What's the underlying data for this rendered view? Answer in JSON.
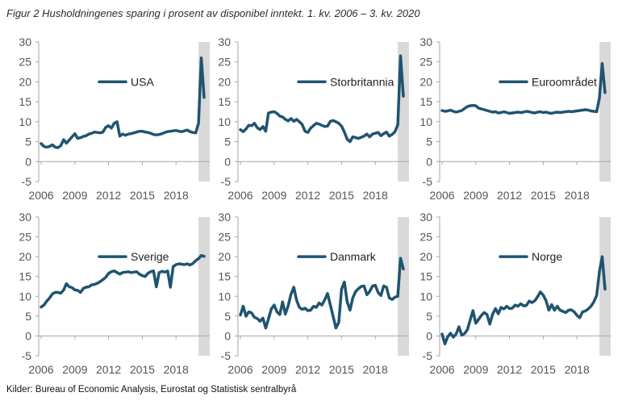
{
  "figure": {
    "title": "Figur 2 Husholdningenes sparing i prosent av disponibel inntekt. 1. kv. 2006 – 3. kv. 2020",
    "source": "Kilder: Bureau of Economic Analysis, Eurostat og Statistisk sentralbyrå"
  },
  "colors": {
    "line": "#1f5470",
    "shade": "#d9d9d9",
    "axis": "#a6a6a6"
  },
  "chart_data": [
    {
      "type": "line",
      "title": "USA",
      "xlabel": "",
      "ylabel": "",
      "x_start": 2006,
      "periods_per_year": 4,
      "xticks": [
        2006,
        2009,
        2012,
        2015,
        2018
      ],
      "ylim": [
        -5,
        30
      ],
      "yticks": [
        -5,
        0,
        5,
        10,
        15,
        20,
        25,
        30
      ],
      "shaded_from": 2020,
      "series": [
        {
          "name": "USA",
          "values": [
            4.5,
            3.8,
            3.6,
            3.8,
            4.2,
            3.6,
            3.5,
            4.0,
            5.5,
            4.6,
            5.4,
            6.2,
            7.0,
            5.8,
            6.0,
            6.3,
            6.5,
            6.9,
            7.1,
            7.4,
            7.3,
            7.2,
            7.4,
            8.6,
            9.0,
            8.4,
            9.6,
            10.0,
            6.4,
            6.9,
            6.6,
            6.9,
            7.0,
            7.2,
            7.4,
            7.6,
            7.6,
            7.4,
            7.3,
            7.1,
            6.8,
            6.7,
            6.8,
            7.0,
            7.3,
            7.5,
            7.6,
            7.7,
            7.8,
            7.6,
            7.5,
            7.7,
            7.9,
            7.5,
            7.3,
            7.2,
            9.6,
            26.0,
            16.1
          ]
        }
      ],
      "legend": {
        "label": "USA",
        "position": "top-center"
      }
    },
    {
      "type": "line",
      "title": "Storbritannia",
      "xlabel": "",
      "ylabel": "",
      "x_start": 2006,
      "periods_per_year": 4,
      "xticks": [
        2006,
        2009,
        2012,
        2015,
        2018
      ],
      "ylim": [
        -5,
        30
      ],
      "yticks": [
        -5,
        0,
        5,
        10,
        15,
        20,
        25,
        30
      ],
      "shaded_from": 2020,
      "series": [
        {
          "name": "Storbritannia",
          "values": [
            8.0,
            7.5,
            8.2,
            9.1,
            9.0,
            9.6,
            8.5,
            8.0,
            8.8,
            7.6,
            12.2,
            12.4,
            12.5,
            12.1,
            11.4,
            11.2,
            10.6,
            10.2,
            10.8,
            10.1,
            10.6,
            10.0,
            9.3,
            7.6,
            7.3,
            8.4,
            9.0,
            9.6,
            9.4,
            9.1,
            8.8,
            8.9,
            10.1,
            10.3,
            10.0,
            9.6,
            8.9,
            7.4,
            5.6,
            5.0,
            6.2,
            6.0,
            5.8,
            6.1,
            6.4,
            6.9,
            6.2,
            6.9,
            7.1,
            7.3,
            6.5,
            7.0,
            7.4,
            6.4,
            6.8,
            7.5,
            9.2,
            26.5,
            16.4
          ]
        }
      ],
      "legend": {
        "label": "Storbritannia",
        "position": "top-center"
      }
    },
    {
      "type": "line",
      "title": "Euroområdet",
      "xlabel": "",
      "ylabel": "",
      "x_start": 2006,
      "periods_per_year": 4,
      "xticks": [
        2006,
        2009,
        2012,
        2015,
        2018
      ],
      "ylim": [
        -5,
        30
      ],
      "yticks": [
        -5,
        0,
        5,
        10,
        15,
        20,
        25,
        30
      ],
      "shaded_from": 2020,
      "series": [
        {
          "name": "Euroområdet",
          "values": [
            12.8,
            12.6,
            12.7,
            12.9,
            12.6,
            12.4,
            12.6,
            12.8,
            13.3,
            13.8,
            14.0,
            14.1,
            14.0,
            13.4,
            13.2,
            13.0,
            12.8,
            12.6,
            12.4,
            12.5,
            12.2,
            12.3,
            12.5,
            12.3,
            12.1,
            12.2,
            12.3,
            12.4,
            12.3,
            12.4,
            12.6,
            12.5,
            12.3,
            12.2,
            12.4,
            12.5,
            12.3,
            12.4,
            12.2,
            12.1,
            12.3,
            12.4,
            12.3,
            12.4,
            12.5,
            12.6,
            12.5,
            12.6,
            12.7,
            12.8,
            12.9,
            13.0,
            12.9,
            12.7,
            12.6,
            12.5,
            16.0,
            24.6,
            17.3
          ]
        }
      ],
      "legend": {
        "label": "Euroområdet",
        "position": "top-center"
      }
    },
    {
      "type": "line",
      "title": "Sverige",
      "xlabel": "",
      "ylabel": "",
      "x_start": 2006,
      "periods_per_year": 4,
      "xticks": [
        2006,
        2009,
        2012,
        2015,
        2018
      ],
      "ylim": [
        -5,
        30
      ],
      "yticks": [
        -5,
        0,
        5,
        10,
        15,
        20,
        25,
        30
      ],
      "shaded_from": 2020,
      "series": [
        {
          "name": "Sverige",
          "values": [
            7.3,
            7.8,
            8.8,
            9.6,
            10.6,
            11.0,
            11.0,
            10.8,
            11.6,
            13.2,
            12.4,
            12.2,
            11.6,
            11.5,
            11.0,
            12.0,
            12.3,
            12.4,
            12.9,
            13.0,
            13.3,
            13.7,
            14.2,
            14.8,
            15.8,
            16.2,
            16.4,
            16.0,
            15.6,
            16.0,
            16.1,
            16.2,
            16.0,
            16.1,
            16.2,
            15.6,
            15.2,
            15.0,
            15.8,
            16.2,
            16.4,
            12.4,
            16.0,
            16.3,
            16.1,
            16.4,
            12.3,
            17.5,
            18.0,
            18.2,
            18.1,
            18.0,
            18.2,
            17.9,
            18.3,
            19.0,
            19.5,
            20.3,
            20.1
          ]
        }
      ],
      "legend": {
        "label": "Sverige",
        "position": "top-center"
      }
    },
    {
      "type": "line",
      "title": "Danmark",
      "xlabel": "",
      "ylabel": "",
      "x_start": 2006,
      "periods_per_year": 4,
      "xticks": [
        2006,
        2009,
        2012,
        2015,
        2018
      ],
      "ylim": [
        -5,
        30
      ],
      "yticks": [
        -5,
        0,
        5,
        10,
        15,
        20,
        25,
        30
      ],
      "shaded_from": 2020,
      "series": [
        {
          "name": "Danmark",
          "values": [
            5.3,
            7.5,
            5.0,
            6.1,
            5.8,
            4.7,
            4.4,
            3.7,
            4.5,
            2.0,
            4.3,
            6.8,
            7.8,
            6.1,
            5.4,
            8.6,
            5.5,
            7.6,
            10.5,
            12.3,
            9.0,
            7.2,
            6.7,
            7.0,
            6.4,
            6.5,
            7.5,
            7.2,
            8.3,
            7.8,
            9.1,
            10.7,
            7.8,
            5.0,
            2.0,
            3.4,
            11.8,
            13.6,
            8.6,
            6.5,
            9.6,
            11.2,
            11.9,
            12.5,
            12.6,
            10.4,
            11.2,
            12.6,
            12.8,
            11.0,
            10.2,
            12.6,
            12.3,
            9.6,
            9.2,
            9.8,
            10.0,
            19.6,
            16.9
          ]
        }
      ],
      "legend": {
        "label": "Danmark",
        "position": "top-center"
      }
    },
    {
      "type": "line",
      "title": "Norge",
      "xlabel": "",
      "ylabel": "",
      "x_start": 2006,
      "periods_per_year": 4,
      "xticks": [
        2006,
        2009,
        2012,
        2015,
        2018
      ],
      "ylim": [
        -5,
        30
      ],
      "yticks": [
        -5,
        0,
        5,
        10,
        15,
        20,
        25,
        30
      ],
      "shaded_from": 2020,
      "series": [
        {
          "name": "Norge",
          "values": [
            0.5,
            -2.0,
            -0.2,
            0.7,
            -0.3,
            0.5,
            2.3,
            0.2,
            0.6,
            1.6,
            4.0,
            6.4,
            3.2,
            4.2,
            5.2,
            5.9,
            5.4,
            3.0,
            5.5,
            6.9,
            5.6,
            7.2,
            6.8,
            7.5,
            6.9,
            7.0,
            7.8,
            7.5,
            8.1,
            7.6,
            7.7,
            8.8,
            8.4,
            8.9,
            9.9,
            11.1,
            10.3,
            8.9,
            6.5,
            7.9,
            6.5,
            7.5,
            6.5,
            6.2,
            5.9,
            6.5,
            6.6,
            6.1,
            5.2,
            4.6,
            6.1,
            6.3,
            6.8,
            7.5,
            8.6,
            10.2,
            16.3,
            20.0,
            11.8
          ]
        }
      ],
      "legend": {
        "label": "Norge",
        "position": "top-center"
      }
    }
  ]
}
